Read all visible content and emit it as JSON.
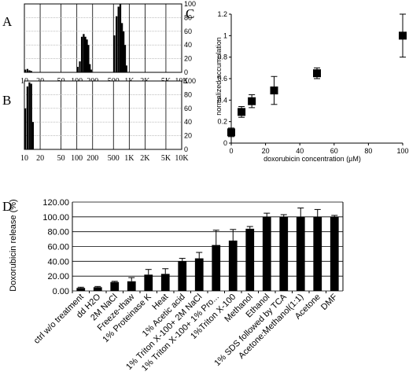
{
  "panels": {
    "A": {
      "letter": "A"
    },
    "B": {
      "letter": "B"
    },
    "C": {
      "letter": "C"
    },
    "D": {
      "letter": "D"
    }
  },
  "chart_data": [
    {
      "id": "A",
      "type": "bar",
      "title": "",
      "xlabel": "",
      "ylabel": "",
      "x_scale": "log",
      "x_ticks": [
        "10",
        "20",
        "50",
        "100",
        "200",
        "500",
        "1K",
        "2K",
        "5K",
        "10K"
      ],
      "x_tick_values": [
        10,
        20,
        50,
        100,
        200,
        500,
        1000,
        2000,
        5000,
        10000
      ],
      "y_ticks": [
        "0",
        "20",
        "40",
        "60",
        "80",
        "100"
      ],
      "ylim": [
        0,
        100
      ],
      "x": [
        10,
        11,
        12,
        13,
        100,
        110,
        120,
        130,
        140,
        150,
        160,
        170,
        180,
        500,
        550,
        600,
        650,
        700,
        750,
        800,
        850
      ],
      "values": [
        4,
        5,
        3,
        2,
        8,
        16,
        52,
        56,
        52,
        48,
        40,
        12,
        4,
        54,
        82,
        96,
        100,
        72,
        60,
        40,
        10
      ]
    },
    {
      "id": "B",
      "type": "bar",
      "title": "",
      "xlabel": "",
      "ylabel": "",
      "x_scale": "log",
      "x_ticks": [
        "10",
        "20",
        "50",
        "100",
        "200",
        "500",
        "1K",
        "2K",
        "5K",
        "10K"
      ],
      "x_tick_values": [
        10,
        20,
        50,
        100,
        200,
        500,
        1000,
        2000,
        5000,
        10000
      ],
      "y_ticks": [
        "0",
        "20",
        "40",
        "60",
        "80",
        "100"
      ],
      "ylim": [
        0,
        100
      ],
      "x": [
        10,
        11,
        12,
        13,
        14
      ],
      "values": [
        60,
        92,
        98,
        96,
        40
      ]
    },
    {
      "id": "C",
      "type": "scatter",
      "title": "",
      "xlabel": "doxorubicin concentration (µM)",
      "ylabel": "normalized accumulation",
      "x_ticks": [
        "0",
        "20",
        "40",
        "60",
        "80",
        "100"
      ],
      "y_ticks": [
        "0",
        "0.2",
        "0.4",
        "0.6",
        "0.8",
        "1",
        "1.2"
      ],
      "xlim": [
        0,
        100
      ],
      "ylim": [
        0,
        1.2
      ],
      "x": [
        0,
        6,
        12,
        25,
        50,
        100
      ],
      "y": [
        0.1,
        0.29,
        0.39,
        0.49,
        0.65,
        1.0
      ],
      "yerr": [
        0.04,
        0.05,
        0.06,
        0.13,
        0.05,
        0.2
      ]
    },
    {
      "id": "D",
      "type": "bar",
      "title": "",
      "xlabel": "",
      "ylabel": "Doxorubicin release (%)",
      "y_ticks": [
        "0.00",
        "20.00",
        "40.00",
        "60.00",
        "80.00",
        "100.00",
        "120.00"
      ],
      "ylim": [
        0,
        120
      ],
      "categories": [
        "ctrl w/o treatment",
        "dd H2O",
        "2M NaCl",
        "Freeze-thaw",
        "1% Proteinase K",
        "Heat",
        "1% Acetic acid",
        "1% Triton X-100+ 2M NaCl",
        "1% Triton X-100+ 1% Pro...",
        "1%Triton X-100",
        "Methanol",
        "Ethanol",
        "1% SDS followed by TCA",
        "Acetone:Methanol(1:1)",
        "Acetone",
        "DMF"
      ],
      "values": [
        4,
        5,
        12,
        13,
        22,
        23,
        40,
        44,
        62,
        68,
        84,
        100,
        100,
        100,
        100,
        100
      ],
      "yerr": [
        1,
        1,
        1,
        5,
        7,
        7,
        4,
        8,
        20,
        15,
        3,
        5,
        3,
        12,
        10,
        2
      ]
    }
  ]
}
